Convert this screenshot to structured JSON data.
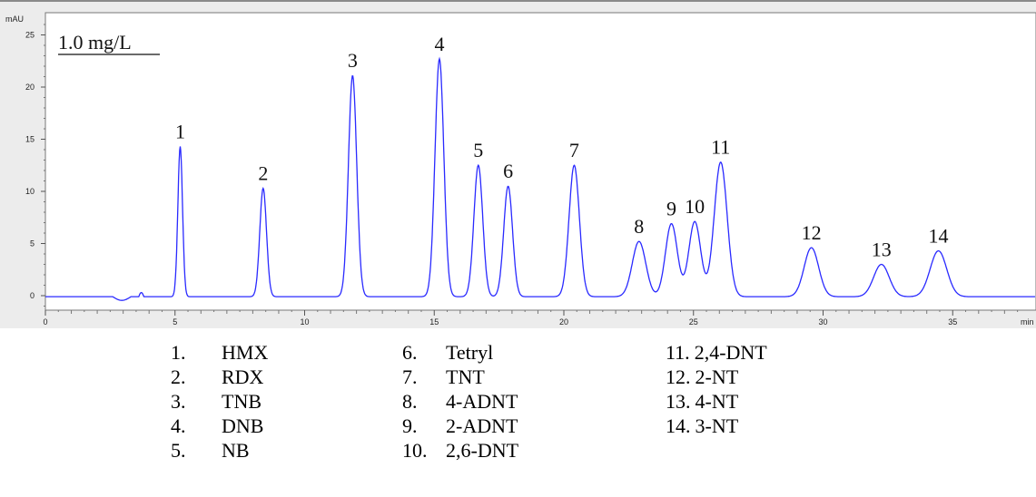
{
  "chart_data": {
    "type": "line",
    "title": "",
    "concentration_label": "1.0 mg/L",
    "ylabel": "mAU",
    "xlabel": "min",
    "xlim": [
      0,
      37.5
    ],
    "ylim": [
      -2,
      26
    ],
    "x_ticks": [
      0,
      5,
      10,
      15,
      20,
      25,
      30,
      35
    ],
    "y_ticks": [
      0,
      5,
      10,
      15,
      20,
      25
    ],
    "line_color": "#2a2aff",
    "background_color": "#ececec",
    "peaks": [
      {
        "label": "1",
        "rt": 5.2,
        "height": 14.4
      },
      {
        "label": "2",
        "rt": 8.4,
        "height": 10.4
      },
      {
        "label": "3",
        "rt": 11.85,
        "height": 21.2
      },
      {
        "label": "4",
        "rt": 15.2,
        "height": 22.8
      },
      {
        "label": "5",
        "rt": 16.7,
        "height": 12.6
      },
      {
        "label": "6",
        "rt": 17.85,
        "height": 10.6
      },
      {
        "label": "7",
        "rt": 20.4,
        "height": 12.6
      },
      {
        "label": "8",
        "rt": 22.9,
        "height": 5.3
      },
      {
        "label": "9",
        "rt": 24.15,
        "height": 7.0
      },
      {
        "label": "10",
        "rt": 25.05,
        "height": 7.2
      },
      {
        "label": "11",
        "rt": 26.05,
        "height": 12.9
      },
      {
        "label": "12",
        "rt": 29.55,
        "height": 4.7
      },
      {
        "label": "13",
        "rt": 32.25,
        "height": 3.1
      },
      {
        "label": "14",
        "rt": 34.45,
        "height": 4.4
      }
    ]
  },
  "legend": [
    {
      "num": "1.",
      "name": "HMX"
    },
    {
      "num": "2.",
      "name": "RDX"
    },
    {
      "num": "3.",
      "name": "TNB"
    },
    {
      "num": "4.",
      "name": "DNB"
    },
    {
      "num": "5.",
      "name": "NB"
    },
    {
      "num": "6.",
      "name": "Tetryl"
    },
    {
      "num": "7.",
      "name": "TNT"
    },
    {
      "num": "8.",
      "name": "4-ADNT"
    },
    {
      "num": "9.",
      "name": "2-ADNT"
    },
    {
      "num": "10.",
      "name": "2,6-DNT"
    },
    {
      "num": "11.",
      "name": "2,4-DNT"
    },
    {
      "num": "12.",
      "name": "2-NT"
    },
    {
      "num": "13.",
      "name": "4-NT"
    },
    {
      "num": "14.",
      "name": "3-NT"
    }
  ]
}
